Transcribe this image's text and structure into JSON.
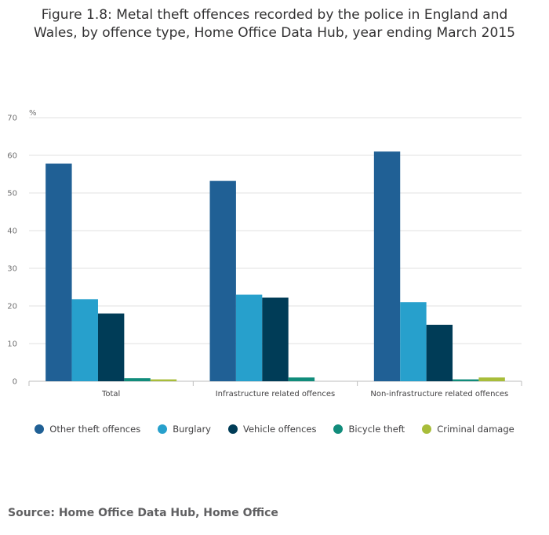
{
  "title_line1": "Figure 1.8: Metal theft offences recorded by the police in England and",
  "title_line2": "Wales, by offence type, Home Office Data Hub, year ending March 2015",
  "source": "Source: Home Office Data Hub, Home Office",
  "chart_data": {
    "type": "bar",
    "ylabel": "%",
    "ylim": [
      0,
      70
    ],
    "yticks": [
      0,
      10,
      20,
      30,
      40,
      50,
      60,
      70
    ],
    "grid": true,
    "legend_placement": "bottom",
    "categories": [
      "Total",
      "Infrastructure related offences",
      "Non-infrastructure related offences"
    ],
    "series": [
      {
        "name": "Other theft offences",
        "color": "#206095",
        "values": [
          57.8,
          53.2,
          61.0
        ]
      },
      {
        "name": "Burglary",
        "color": "#27a0cc",
        "values": [
          21.8,
          23.0,
          21.0
        ]
      },
      {
        "name": "Vehicle offences",
        "color": "#003c57",
        "values": [
          18.0,
          22.2,
          15.0
        ]
      },
      {
        "name": "Bicycle theft",
        "color": "#118c7b",
        "values": [
          0.8,
          1.0,
          0.5
        ]
      },
      {
        "name": "Criminal damage",
        "color": "#a8bd3a",
        "values": [
          0.5,
          0.0,
          1.0
        ]
      }
    ]
  }
}
